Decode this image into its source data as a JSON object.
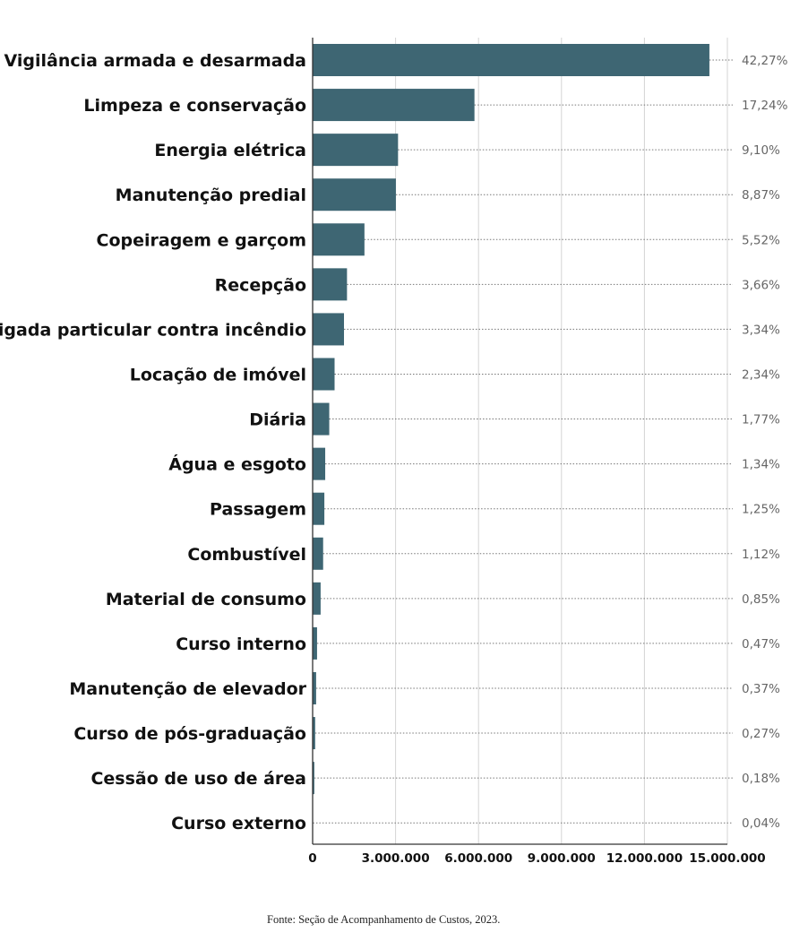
{
  "chart_data": {
    "type": "bar",
    "orientation": "horizontal",
    "categories": [
      "Vigilância armada e desarmada",
      "Limpeza e conservação",
      "Energia elétrica",
      "Manutenção predial",
      "Copeiragem e garçom",
      "Recepção",
      "Brigada particular contra incêndio",
      "Locação de imóvel",
      "Diária",
      "Água e esgoto",
      "Passagem",
      "Combustível",
      "Material de consumo",
      "Curso interno",
      "Manutenção de elevador",
      "Curso de pós-graduação",
      "Cessão de uso de área",
      "Curso externo"
    ],
    "values": [
      14350000,
      5853000,
      3089000,
      3011000,
      1874000,
      1243000,
      1134000,
      794000,
      601000,
      455000,
      424000,
      380000,
      289000,
      160000,
      126000,
      92000,
      61000,
      14000
    ],
    "data_labels": [
      "42,27%",
      "17,24%",
      "9,10%",
      "8,87%",
      "5,52%",
      "3,66%",
      "3,34%",
      "2,34%",
      "1,77%",
      "1,34%",
      "1,25%",
      "1,12%",
      "0,85%",
      "0,47%",
      "0,37%",
      "0,27%",
      "0,18%",
      "0,04%"
    ],
    "xlim": [
      0,
      15000000
    ],
    "xticks": [
      0,
      3000000,
      6000000,
      9000000,
      12000000,
      15000000
    ],
    "xtick_labels": [
      "0",
      "3.000.000",
      "6.000.000",
      "9.000.000",
      "12.000.000",
      "15.000.000"
    ],
    "grid": "vertical",
    "bar_color": "#3e6673",
    "source": "Fonte: Seção de Acompanhamento de Custos, 2023."
  }
}
